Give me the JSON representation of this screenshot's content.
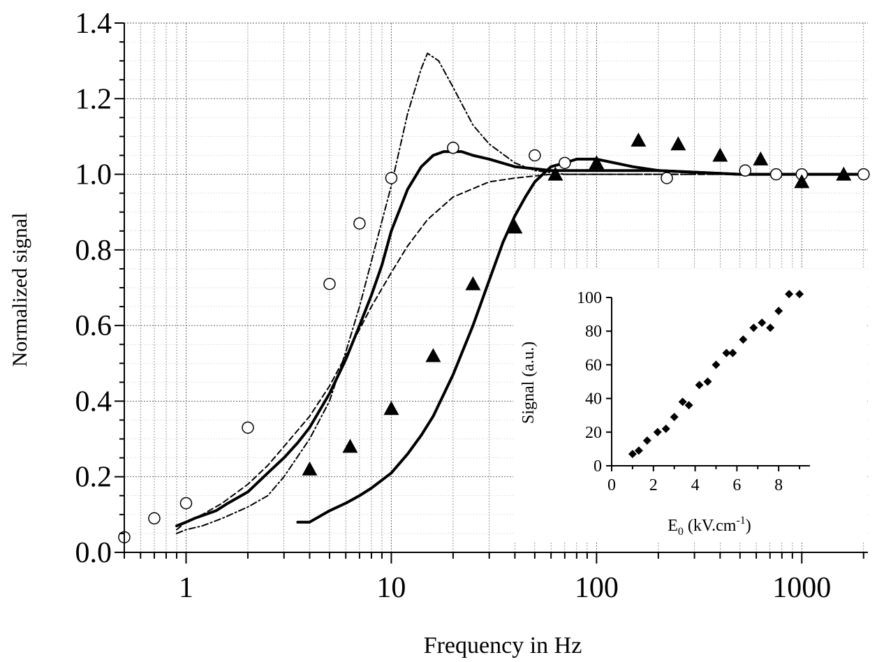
{
  "chart_data": [
    {
      "type": "line",
      "xlabel": "Frequency in Hz",
      "ylabel": "Normalized signal",
      "xscale": "log",
      "xlim": [
        0.5,
        2100
      ],
      "ylim": [
        0.0,
        1.4
      ],
      "grid": true,
      "x_ticks": [
        1,
        10,
        100,
        1000
      ],
      "x_tick_labels": [
        "1",
        "10",
        "100",
        "1000"
      ],
      "y_ticks": [
        0.0,
        0.2,
        0.4,
        0.6,
        0.8,
        1.0,
        1.2,
        1.4
      ],
      "y_tick_labels": [
        "0.0",
        "0.2",
        "0.4",
        "0.6",
        "0.8",
        "1.0",
        "1.2",
        "1.4"
      ],
      "series": [
        {
          "style": "open-circle-markers",
          "x": [
            0.5,
            0.7,
            1.0,
            2.0,
            5.0,
            7.0,
            10.0,
            20.0,
            50.0,
            70.0,
            220,
            530,
            750,
            1000,
            2000
          ],
          "y": [
            0.04,
            0.09,
            0.13,
            0.33,
            0.71,
            0.87,
            0.99,
            1.07,
            1.05,
            1.03,
            0.99,
            1.01,
            1.0,
            1.0,
            1.0
          ]
        },
        {
          "style": "filled-triangle-markers",
          "x": [
            4.0,
            6.3,
            10.0,
            16.0,
            25.0,
            40.0,
            63.0,
            100,
            160,
            250,
            400,
            630,
            1000,
            1600
          ],
          "y": [
            0.22,
            0.28,
            0.38,
            0.52,
            0.71,
            0.86,
            1.0,
            1.03,
            1.09,
            1.08,
            1.05,
            1.04,
            0.98,
            1.0
          ]
        },
        {
          "style": "thick-solid-line",
          "x": [
            0.9,
            1.0,
            1.1,
            1.4,
            1.6,
            2.0,
            2.5,
            3.0,
            3.5,
            4.0,
            5.0,
            6.0,
            7.0,
            8.0,
            9.0,
            10.0,
            12.0,
            14.0,
            16.0,
            18.0,
            20.0,
            22.0,
            25.0,
            30.0,
            40.0,
            60.0,
            100,
            200,
            500,
            1000,
            2000
          ],
          "y": [
            0.07,
            0.08,
            0.09,
            0.11,
            0.13,
            0.16,
            0.21,
            0.25,
            0.29,
            0.33,
            0.42,
            0.51,
            0.6,
            0.68,
            0.76,
            0.85,
            0.96,
            1.02,
            1.05,
            1.06,
            1.06,
            1.06,
            1.05,
            1.04,
            1.02,
            1.01,
            1.01,
            1.01,
            1.0,
            1.0,
            1.0
          ]
        },
        {
          "style": "thick-solid-line",
          "x": [
            3.5,
            4.0,
            5.0,
            6.0,
            7.0,
            8.0,
            10.0,
            12.0,
            14.0,
            16.0,
            20.0,
            25.0,
            30.0,
            35.0,
            40.0,
            45.0,
            50.0,
            60.0,
            70.0,
            80.0,
            100,
            150,
            200,
            500,
            1000,
            2000
          ],
          "y": [
            0.08,
            0.08,
            0.11,
            0.13,
            0.15,
            0.17,
            0.21,
            0.26,
            0.31,
            0.36,
            0.47,
            0.6,
            0.72,
            0.82,
            0.89,
            0.94,
            0.98,
            1.02,
            1.03,
            1.04,
            1.04,
            1.02,
            1.01,
            1.0,
            1.0,
            1.0
          ]
        },
        {
          "style": "dashed-line",
          "x": [
            0.9,
            1.0,
            1.2,
            1.5,
            2.0,
            2.5,
            3.0,
            4.0,
            5.0,
            6.0,
            7.0,
            8.0,
            10.0,
            12.0,
            15.0,
            20.0,
            30.0,
            40.0,
            60.0,
            100,
            200,
            500,
            1000,
            2000
          ],
          "y": [
            0.06,
            0.08,
            0.1,
            0.13,
            0.18,
            0.23,
            0.28,
            0.36,
            0.44,
            0.52,
            0.59,
            0.65,
            0.74,
            0.81,
            0.88,
            0.94,
            0.98,
            0.99,
            1.0,
            1.0,
            1.0,
            1.0,
            1.0,
            1.0
          ]
        },
        {
          "style": "dash-dot-line",
          "x": [
            0.9,
            1.0,
            1.2,
            1.5,
            2.0,
            2.5,
            3.0,
            4.0,
            5.0,
            6.0,
            7.0,
            8.0,
            10.0,
            12.0,
            14.0,
            15.0,
            17.0,
            20.0,
            25.0,
            30.0,
            40.0,
            50.0,
            70.0,
            100,
            200,
            500,
            1000,
            2000
          ],
          "y": [
            0.05,
            0.06,
            0.07,
            0.09,
            0.12,
            0.15,
            0.2,
            0.3,
            0.4,
            0.53,
            0.65,
            0.77,
            0.97,
            1.16,
            1.28,
            1.32,
            1.3,
            1.23,
            1.13,
            1.08,
            1.03,
            1.01,
            1.0,
            1.0,
            1.0,
            1.0,
            1.0,
            1.0
          ]
        }
      ]
    },
    {
      "type": "scatter",
      "placement": "inset",
      "xlabel": "E",
      "xlabel_sub": "0",
      "xlabel_rest": " (kV.cm",
      "xlabel_sup": "-1",
      "xlabel_end": ")",
      "ylabel": "Signal (a.u.)",
      "xlim": [
        0,
        9.5
      ],
      "ylim": [
        0,
        100
      ],
      "x_ticks": [
        0,
        2,
        4,
        6,
        8
      ],
      "x_tick_labels": [
        "0",
        "2",
        "4",
        "6",
        "8"
      ],
      "y_ticks": [
        0,
        20,
        40,
        60,
        80,
        100
      ],
      "y_tick_labels": [
        "0",
        "20",
        "40",
        "60",
        "80",
        "100"
      ],
      "series": [
        {
          "style": "filled-diamond-markers",
          "x": [
            1.0,
            1.3,
            1.7,
            2.2,
            2.6,
            3.0,
            3.4,
            3.7,
            4.2,
            4.6,
            5.0,
            5.5,
            5.8,
            6.3,
            6.8,
            7.2,
            7.6,
            8.0,
            8.5,
            9.0
          ],
          "y": [
            7,
            9,
            15,
            20,
            22,
            29,
            38,
            36,
            48,
            50,
            60,
            67,
            67,
            75,
            82,
            85,
            82,
            92,
            102,
            102
          ]
        }
      ]
    }
  ]
}
